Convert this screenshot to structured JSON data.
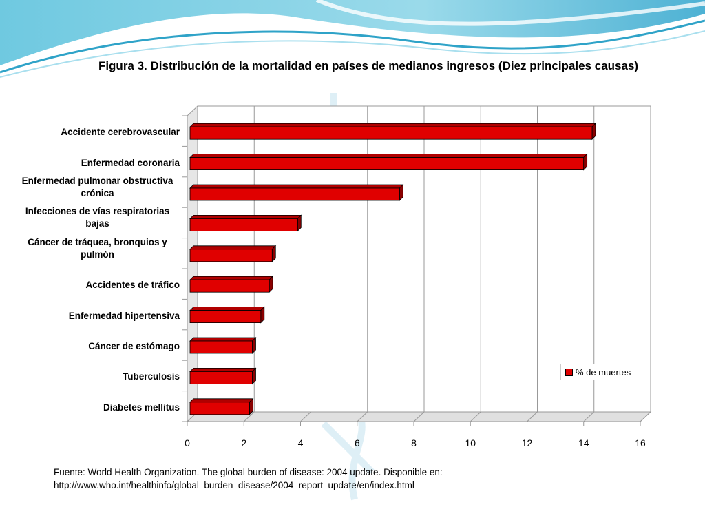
{
  "slide": {
    "title": "Figura 3. Distribución de la mortalidad en países de medianos ingresos (Diez principales causas)",
    "source_line1": "Fuente: World Health Organization. The global burden of disease: 2004 update. Disponible en:",
    "source_line2": "http://www.who.int/healthinfo/global_burden_disease/2004_report_update/en/index.html"
  },
  "colors": {
    "bar": "#e00000",
    "bar_dark": "#8a0000",
    "bar_top": "#b00000"
  },
  "chart_data": {
    "type": "bar",
    "orientation": "horizontal",
    "style": "3d",
    "title": "Figura 3. Distribución de la mortalidad en países de medianos ingresos (Diez principales causas)",
    "categories": [
      "Accidente cerebrovascular",
      "Enfermedad coronaria",
      "Enfermedad pulmonar obstructiva crónica",
      "Infecciones de vías respiratorias bajas",
      "Cáncer de tráquea, bronquios y pulmón",
      "Accidentes de tráfico",
      "Enfermedad hipertensiva",
      "Cáncer de estómago",
      "Tuberculosis",
      "Diabetes mellitus"
    ],
    "series": [
      {
        "name": "% de muertes",
        "values": [
          14.2,
          13.9,
          7.4,
          3.8,
          2.9,
          2.8,
          2.5,
          2.2,
          2.2,
          2.1
        ]
      }
    ],
    "xlim": [
      0,
      16
    ],
    "xticks": [
      "0",
      "2",
      "4",
      "6",
      "8",
      "10",
      "12",
      "14",
      "16"
    ],
    "grid": true,
    "legend": "right"
  }
}
